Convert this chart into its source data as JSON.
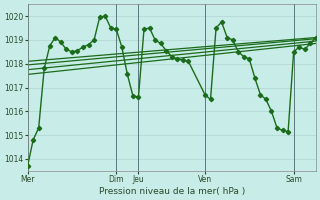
{
  "xlabel": "Pression niveau de la mer( hPa )",
  "background_color": "#c8ece8",
  "grid_color": "#b0d4d0",
  "vline_color": "#5a7a7a",
  "line_color": "#1a6b1a",
  "ylim": [
    1013.5,
    1020.5
  ],
  "yticks": [
    1014,
    1015,
    1016,
    1017,
    1018,
    1019,
    1020
  ],
  "day_labels": [
    "Mer",
    "Dim",
    "Jeu",
    "Ven",
    "Sam"
  ],
  "day_positions": [
    0,
    96,
    120,
    192,
    288
  ],
  "total_hours": 312,
  "main_series": {
    "x": [
      0,
      6,
      12,
      18,
      24,
      30,
      36,
      42,
      48,
      54,
      60,
      66,
      72,
      78,
      84,
      90,
      96,
      102,
      108,
      114,
      120,
      126,
      132,
      138,
      144,
      150,
      156,
      162,
      168,
      174,
      192,
      198,
      204,
      210,
      216,
      222,
      228,
      234,
      240,
      246,
      252,
      258,
      264,
      270,
      276,
      282,
      288,
      294,
      300,
      306,
      312
    ],
    "y": [
      1013.7,
      1014.8,
      1015.3,
      1017.8,
      1018.75,
      1019.1,
      1018.9,
      1018.6,
      1018.5,
      1018.55,
      1018.7,
      1018.8,
      1019.0,
      1019.95,
      1020.0,
      1019.5,
      1019.45,
      1018.7,
      1017.55,
      1016.65,
      1016.6,
      1019.45,
      1019.5,
      1019.0,
      1018.85,
      1018.55,
      1018.3,
      1018.2,
      1018.15,
      1018.1,
      1016.7,
      1016.5,
      1019.5,
      1019.75,
      1019.1,
      1019.0,
      1018.5,
      1018.3,
      1018.2,
      1017.4,
      1016.7,
      1016.5,
      1016.0,
      1015.3,
      1015.2,
      1015.15,
      1018.5,
      1018.7,
      1018.6,
      1018.85,
      1019.1
    ],
    "linewidth": 1.0,
    "markersize": 2.2
  },
  "smooth_lines": [
    {
      "x": [
        0,
        312
      ],
      "y": [
        1018.1,
        1019.1
      ]
    },
    {
      "x": [
        0,
        312
      ],
      "y": [
        1017.95,
        1019.05
      ]
    },
    {
      "x": [
        0,
        312
      ],
      "y": [
        1017.75,
        1018.95
      ]
    },
    {
      "x": [
        0,
        312
      ],
      "y": [
        1017.55,
        1018.85
      ]
    }
  ]
}
